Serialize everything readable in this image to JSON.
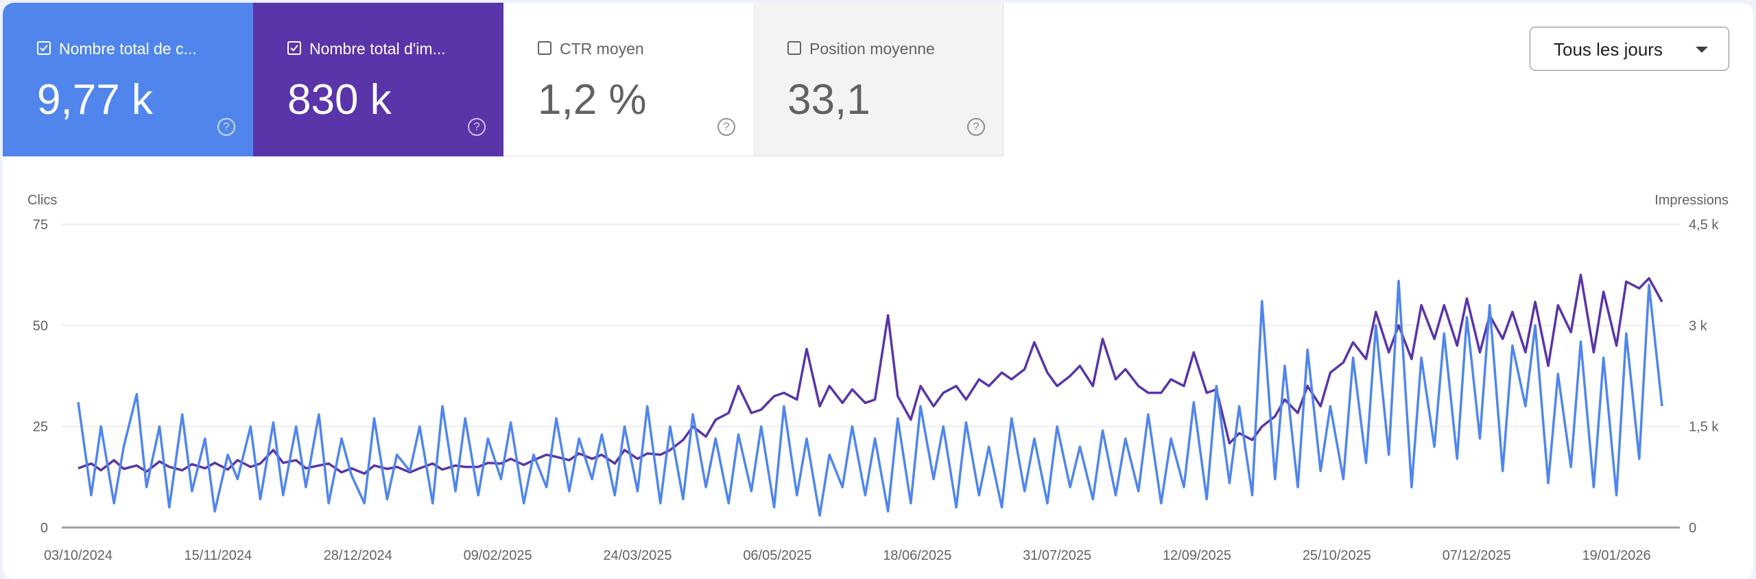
{
  "cards": [
    {
      "label": "Nombre total de c...",
      "value": "9,77 k",
      "checked": true,
      "color": "#5086ec"
    },
    {
      "label": "Nombre total d'im...",
      "value": "830 k",
      "checked": true,
      "color": "#5935a9"
    },
    {
      "label": "CTR moyen",
      "value": "1,2 %",
      "checked": false
    },
    {
      "label": "Position moyenne",
      "value": "33,1",
      "checked": false
    }
  ],
  "help_glyph": "?",
  "granularity_dropdown": {
    "selected": "Tous les jours"
  },
  "chart_data": {
    "type": "line",
    "left_axis": {
      "title": "Clics",
      "ticks": [
        "0",
        "25",
        "50",
        "75"
      ],
      "ylim": [
        0,
        75
      ]
    },
    "right_axis": {
      "title": "Impressions",
      "ticks": [
        "0",
        "1,5 k",
        "3 k",
        "4,5 k"
      ],
      "ylim": [
        0,
        4500
      ]
    },
    "x_ticks": [
      "03/10/2024",
      "15/11/2024",
      "28/12/2024",
      "09/02/2025",
      "24/03/2025",
      "06/05/2025",
      "18/06/2025",
      "31/07/2025",
      "12/09/2025",
      "25/10/2025",
      "07/12/2025",
      "19/01/2026"
    ],
    "xlim": [
      "2024-10-03",
      "2026-02-02"
    ],
    "grid": true,
    "x": [
      "2024-10-03",
      "2024-10-07",
      "2024-10-10",
      "2024-10-14",
      "2024-10-17",
      "2024-10-21",
      "2024-10-24",
      "2024-10-28",
      "2024-10-31",
      "2024-11-04",
      "2024-11-07",
      "2024-11-11",
      "2024-11-14",
      "2024-11-18",
      "2024-11-21",
      "2024-11-25",
      "2024-11-28",
      "2024-12-02",
      "2024-12-05",
      "2024-12-09",
      "2024-12-12",
      "2024-12-16",
      "2024-12-19",
      "2024-12-23",
      "2024-12-26",
      "2024-12-30",
      "2025-01-02",
      "2025-01-06",
      "2025-01-09",
      "2025-01-13",
      "2025-01-16",
      "2025-01-20",
      "2025-01-23",
      "2025-01-27",
      "2025-01-30",
      "2025-02-03",
      "2025-02-06",
      "2025-02-10",
      "2025-02-13",
      "2025-02-17",
      "2025-02-20",
      "2025-02-24",
      "2025-02-27",
      "2025-03-03",
      "2025-03-06",
      "2025-03-10",
      "2025-03-13",
      "2025-03-17",
      "2025-03-20",
      "2025-03-24",
      "2025-03-27",
      "2025-03-31",
      "2025-04-03",
      "2025-04-07",
      "2025-04-10",
      "2025-04-14",
      "2025-04-17",
      "2025-04-21",
      "2025-04-24",
      "2025-04-28",
      "2025-05-01",
      "2025-05-05",
      "2025-05-08",
      "2025-05-12",
      "2025-05-15",
      "2025-05-19",
      "2025-05-22",
      "2025-05-26",
      "2025-05-29",
      "2025-06-02",
      "2025-06-05",
      "2025-06-09",
      "2025-06-12",
      "2025-06-16",
      "2025-06-19",
      "2025-06-23",
      "2025-06-26",
      "2025-06-30",
      "2025-07-03",
      "2025-07-07",
      "2025-07-10",
      "2025-07-14",
      "2025-07-17",
      "2025-07-21",
      "2025-07-24",
      "2025-07-28",
      "2025-07-31",
      "2025-08-04",
      "2025-08-07",
      "2025-08-11",
      "2025-08-14",
      "2025-08-18",
      "2025-08-21",
      "2025-08-25",
      "2025-08-28",
      "2025-09-01",
      "2025-09-04",
      "2025-09-08",
      "2025-09-11",
      "2025-09-15",
      "2025-09-18",
      "2025-09-22",
      "2025-09-25",
      "2025-09-29",
      "2025-10-02",
      "2025-10-06",
      "2025-10-09",
      "2025-10-13",
      "2025-10-16",
      "2025-10-20",
      "2025-10-23",
      "2025-10-27",
      "2025-10-30",
      "2025-11-03",
      "2025-11-06",
      "2025-11-10",
      "2025-11-13",
      "2025-11-17",
      "2025-11-20",
      "2025-11-24",
      "2025-11-27",
      "2025-12-01",
      "2025-12-04",
      "2025-12-08",
      "2025-12-11",
      "2025-12-15",
      "2025-12-18",
      "2025-12-22",
      "2025-12-25",
      "2025-12-29",
      "2026-01-01",
      "2026-01-05",
      "2026-01-08",
      "2026-01-12",
      "2026-01-15",
      "2026-01-19",
      "2026-01-22",
      "2026-01-26",
      "2026-01-29",
      "2026-02-02"
    ],
    "series": [
      {
        "name": "Clics",
        "axis": "left",
        "color": "#5086ec",
        "values": [
          31,
          8,
          25,
          6,
          20,
          33,
          10,
          25,
          5,
          28,
          9,
          22,
          4,
          18,
          12,
          25,
          7,
          26,
          8,
          25,
          10,
          28,
          6,
          22,
          13,
          6,
          27,
          7,
          18,
          14,
          25,
          6,
          30,
          9,
          27,
          8,
          22,
          12,
          26,
          6,
          18,
          10,
          27,
          9,
          22,
          12,
          23,
          8,
          25,
          9,
          30,
          6,
          25,
          7,
          28,
          10,
          22,
          6,
          23,
          9,
          25,
          5,
          30,
          8,
          22,
          3,
          18,
          10,
          25,
          8,
          22,
          4,
          27,
          6,
          30,
          12,
          25,
          5,
          26,
          8,
          20,
          5,
          27,
          9,
          22,
          6,
          25,
          10,
          20,
          7,
          24,
          8,
          22,
          9,
          28,
          6,
          22,
          10,
          31,
          7,
          35,
          11,
          30,
          8,
          56,
          12,
          40,
          10,
          44,
          14,
          30,
          12,
          42,
          16,
          50,
          18,
          61,
          10,
          42,
          20,
          48,
          17,
          52,
          22,
          55,
          14,
          45,
          30,
          50,
          11,
          38,
          15,
          46,
          10,
          42,
          8,
          48,
          17,
          60,
          30
        ]
      },
      {
        "name": "Impressions",
        "axis": "right",
        "color": "#5935a9",
        "values": [
          880,
          950,
          850,
          1000,
          870,
          920,
          830,
          980,
          900,
          850,
          940,
          880,
          960,
          860,
          1000,
          900,
          950,
          1150,
          960,
          1000,
          880,
          920,
          950,
          820,
          880,
          800,
          920,
          870,
          900,
          820,
          880,
          950,
          860,
          920,
          900,
          900,
          960,
          950,
          1020,
          930,
          1000,
          1080,
          1050,
          1000,
          1100,
          1020,
          1080,
          950,
          1150,
          1020,
          1100,
          1080,
          1150,
          1300,
          1500,
          1350,
          1600,
          1700,
          2100,
          1700,
          1750,
          1950,
          2000,
          1900,
          2650,
          1800,
          2100,
          1850,
          2050,
          1850,
          1900,
          3150,
          1950,
          1600,
          2100,
          1800,
          2000,
          2100,
          1900,
          2200,
          2100,
          2300,
          2200,
          2350,
          2750,
          2300,
          2100,
          2250,
          2400,
          2100,
          2800,
          2200,
          2350,
          2100,
          2000,
          2000,
          2200,
          2100,
          2600,
          2000,
          2050,
          1250,
          1400,
          1300,
          1500,
          1650,
          1900,
          1700,
          2100,
          1800,
          2300,
          2450,
          2750,
          2500,
          3200,
          2600,
          3000,
          2500,
          3300,
          2800,
          3300,
          2700,
          3400,
          2600,
          3150,
          2800,
          3200,
          2600,
          3350,
          2400,
          3300,
          2900,
          3750,
          2600,
          3500,
          2700,
          3650,
          3550,
          3700,
          3350
        ]
      }
    ]
  }
}
